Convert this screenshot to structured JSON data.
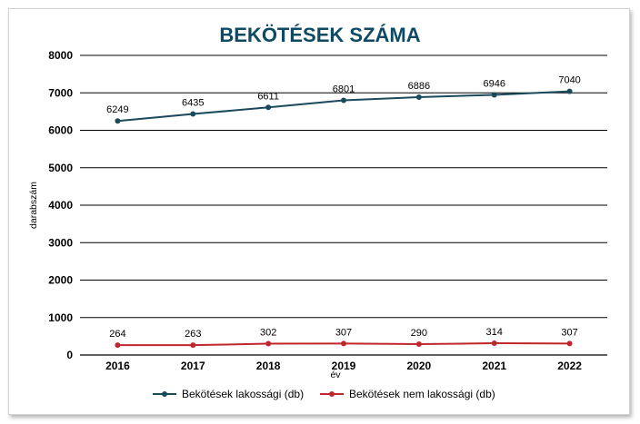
{
  "chart_data": {
    "type": "line",
    "title": "BEKÖTÉSEK SZÁMA",
    "xlabel": "év",
    "ylabel": "darabszám",
    "categories": [
      "2016",
      "2017",
      "2018",
      "2019",
      "2020",
      "2021",
      "2022"
    ],
    "ylim": [
      0,
      8000
    ],
    "yticks": [
      "0",
      "1000",
      "2000",
      "3000",
      "4000",
      "5000",
      "6000",
      "7000",
      "8000"
    ],
    "grid": true,
    "legend_position": "bottom",
    "series": [
      {
        "name": "Bekötések lakossági (db)",
        "color": "#1a4a5c",
        "values": [
          6249,
          6435,
          6611,
          6801,
          6886,
          6946,
          7040
        ]
      },
      {
        "name": "Bekötések nem lakossági (db)",
        "color": "#c0272d",
        "values": [
          264,
          263,
          302,
          307,
          290,
          314,
          307
        ]
      }
    ]
  }
}
